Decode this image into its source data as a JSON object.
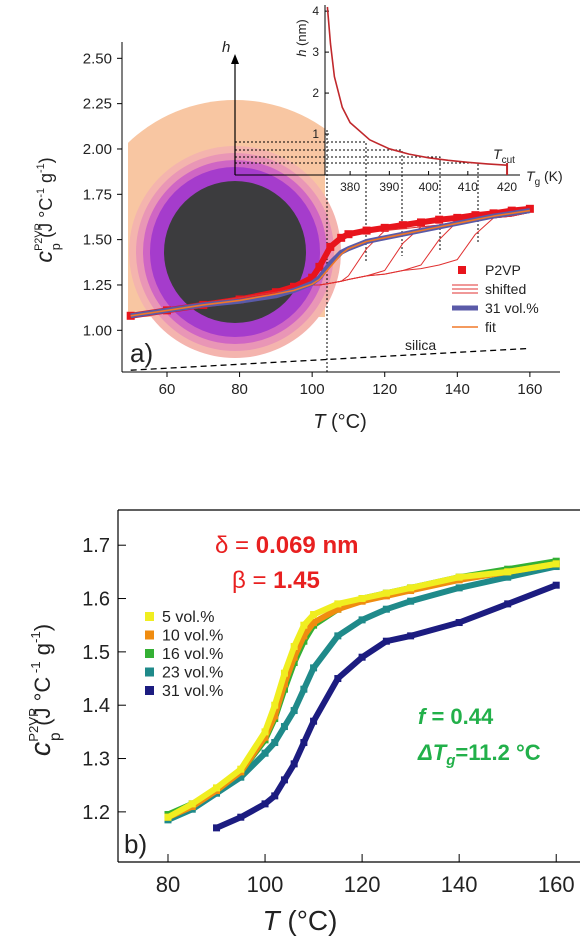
{
  "chart_data": [
    {
      "type": "line",
      "panel_label": "a)",
      "xlabel": {
        "symbol": "T",
        "unit": " (°C)"
      },
      "ylabel": {
        "base": "c",
        "sup": "P2VP",
        "sub": "p",
        "unit": [
          "(J °C",
          "-1",
          " g",
          "-1",
          ")"
        ]
      },
      "xlim": [
        47.6,
        168.3
      ],
      "ylim": [
        0.77,
        2.59
      ],
      "xticks": [
        60,
        80,
        100,
        120,
        140,
        160
      ],
      "yticks": [
        {
          "value": 1,
          "label": "1.00"
        },
        {
          "value": 1.25,
          "label": "1.25"
        },
        {
          "value": 1.5,
          "label": "1.50"
        },
        {
          "value": 1.75,
          "label": "1.75"
        },
        {
          "value": 2,
          "label": "2.00"
        },
        {
          "value": 2.25,
          "label": "2.25"
        },
        {
          "value": 2.5,
          "label": "2.50"
        }
      ],
      "x": [
        50,
        60,
        70,
        80,
        90,
        95,
        100,
        102,
        105,
        108,
        110,
        115,
        120,
        125,
        130,
        135,
        140,
        145,
        150,
        155,
        160
      ],
      "series": [
        {
          "name": "P2VP",
          "color": "#e8141c",
          "marker": "square",
          "values": [
            1.08,
            1.11,
            1.14,
            1.17,
            1.21,
            1.24,
            1.29,
            1.35,
            1.46,
            1.51,
            1.53,
            1.55,
            1.565,
            1.58,
            1.595,
            1.61,
            1.62,
            1.635,
            1.645,
            1.66,
            1.67
          ]
        },
        {
          "name": "shifted",
          "color": "#e03030",
          "curves": [
            [
              1.08,
              1.11,
              1.15,
              1.18,
              1.21,
              1.23,
              1.25,
              1.25,
              1.26,
              1.27,
              1.3,
              1.45,
              1.55,
              1.56,
              1.57,
              1.58,
              1.6,
              1.61,
              1.62,
              1.63,
              1.65
            ],
            [
              1.08,
              1.11,
              1.15,
              1.18,
              1.21,
              1.23,
              1.25,
              1.25,
              1.26,
              1.27,
              1.28,
              1.3,
              1.33,
              1.48,
              1.57,
              1.58,
              1.6,
              1.61,
              1.62,
              1.63,
              1.65
            ],
            [
              1.08,
              1.11,
              1.15,
              1.18,
              1.21,
              1.23,
              1.25,
              1.25,
              1.26,
              1.27,
              1.28,
              1.3,
              1.31,
              1.33,
              1.36,
              1.5,
              1.6,
              1.61,
              1.62,
              1.63,
              1.65
            ],
            [
              1.08,
              1.11,
              1.15,
              1.18,
              1.21,
              1.23,
              1.25,
              1.25,
              1.26,
              1.27,
              1.28,
              1.3,
              1.31,
              1.33,
              1.34,
              1.36,
              1.39,
              1.53,
              1.62,
              1.63,
              1.65
            ]
          ]
        },
        {
          "name": "31 vol.%",
          "color": "#5a5aa8",
          "width": 5,
          "values": [
            1.08,
            1.11,
            1.14,
            1.16,
            1.19,
            1.22,
            1.26,
            1.29,
            1.37,
            1.43,
            1.45,
            1.49,
            1.51,
            1.53,
            1.55,
            1.57,
            1.59,
            1.61,
            1.63,
            1.645,
            1.66
          ]
        },
        {
          "name": "fit",
          "color": "#f07828",
          "values": [
            1.08,
            1.11,
            1.14,
            1.165,
            1.2,
            1.22,
            1.255,
            1.28,
            1.35,
            1.42,
            1.45,
            1.49,
            1.51,
            1.53,
            1.55,
            1.57,
            1.59,
            1.61,
            1.63,
            1.645,
            1.66
          ]
        }
      ],
      "silica": {
        "label": "silica",
        "x": [
          50,
          160
        ],
        "values": [
          0.78,
          0.9
        ]
      },
      "illustration_label": "h"
    },
    {
      "type": "line",
      "xlabel": {
        "base": "T",
        "sub": "g",
        "unit": " (K)"
      },
      "ylabel": {
        "symbol": "h",
        "unit": " (nm)"
      },
      "xlim": [
        373.6,
        423.3
      ],
      "ylim": [
        0,
        4.15
      ],
      "xticks": [
        380,
        390,
        400,
        410,
        420
      ],
      "yticks": [
        1,
        2,
        3,
        4
      ],
      "x": [
        374.2,
        375,
        376,
        378,
        380,
        385,
        390,
        395,
        400,
        405,
        410,
        415,
        420
      ],
      "values": [
        4.1,
        3.2,
        2.4,
        1.65,
        1.28,
        0.86,
        0.64,
        0.51,
        0.42,
        0.36,
        0.31,
        0.27,
        0.24
      ],
      "color": "#c0282c",
      "tcut": 420,
      "tcut_label": {
        "base": "T",
        "sub": "cut"
      }
    },
    {
      "type": "line",
      "panel_label": "b)",
      "xlabel": {
        "symbol": "T",
        "unit": " (°C)"
      },
      "ylabel": {
        "base": "c",
        "sup": "P2VP",
        "sub": "p",
        "unit": [
          "(J °C",
          " -1",
          " g",
          "-1",
          ")"
        ]
      },
      "xlim": [
        69.7,
        164.9
      ],
      "ylim": [
        1.106,
        1.766
      ],
      "xticks": [
        80,
        100,
        120,
        140,
        160
      ],
      "yticks": [
        1.2,
        1.3,
        1.4,
        1.5,
        1.6,
        1.7
      ],
      "x": [
        80,
        85,
        90,
        95,
        100,
        102,
        104,
        106,
        108,
        110,
        115,
        120,
        125,
        130,
        140,
        150,
        160
      ],
      "series": [
        {
          "name": "5 vol.%",
          "color": "#f0ee20",
          "values": [
            1.19,
            1.215,
            1.245,
            1.28,
            1.35,
            1.4,
            1.46,
            1.51,
            1.55,
            1.57,
            1.59,
            1.6,
            1.61,
            1.62,
            1.64,
            1.65,
            1.665
          ]
        },
        {
          "name": "10 vol.%",
          "color": "#f08c10",
          "values": [
            1.19,
            1.21,
            1.24,
            1.275,
            1.34,
            1.38,
            1.44,
            1.49,
            1.53,
            1.555,
            1.58,
            1.595,
            1.605,
            1.615,
            1.635,
            1.65,
            1.665
          ]
        },
        {
          "name": "16 vol.%",
          "color": "#34b034",
          "values": [
            1.195,
            1.215,
            1.24,
            1.275,
            1.335,
            1.375,
            1.43,
            1.48,
            1.52,
            1.55,
            1.58,
            1.6,
            1.61,
            1.62,
            1.64,
            1.655,
            1.67
          ]
        },
        {
          "name": "23 vol.%",
          "color": "#1f8a8a",
          "values": [
            1.185,
            1.205,
            1.235,
            1.265,
            1.31,
            1.33,
            1.36,
            1.39,
            1.43,
            1.47,
            1.53,
            1.56,
            1.58,
            1.595,
            1.62,
            1.64,
            1.66
          ]
        },
        {
          "name": "31 vol.%",
          "color": "#1c1c80",
          "values": [
            null,
            null,
            1.17,
            1.19,
            1.215,
            1.23,
            1.26,
            1.29,
            1.33,
            1.37,
            1.45,
            1.49,
            1.52,
            1.53,
            1.555,
            1.59,
            1.625
          ]
        }
      ],
      "annotations": [
        {
          "parts": [
            "δ = ",
            "0.069 nm"
          ],
          "color": "#e82020"
        },
        {
          "parts": [
            "β = ",
            "1.45"
          ],
          "color": "#e82020"
        },
        {
          "parts": [
            "f",
            " = 0.44"
          ],
          "color": "#22b04a"
        },
        {
          "parts": [
            "ΔT",
            "g",
            "=11.2 °C"
          ],
          "color": "#22b04a"
        }
      ]
    }
  ]
}
